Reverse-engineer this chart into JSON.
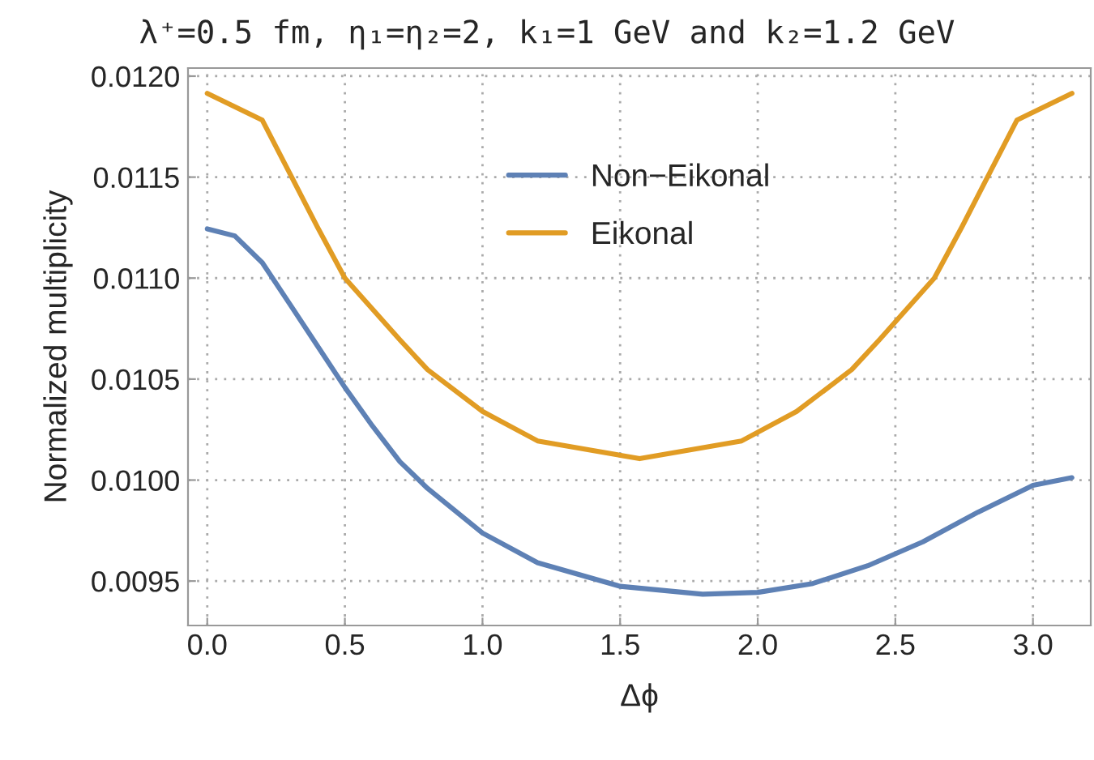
{
  "chart_data": {
    "type": "line",
    "title": "λ⁺=0.5 fm, η₁=η₂=2, k₁=1 GeV and k₂=1.2 GeV",
    "xlabel": "Δϕ",
    "ylabel": "Normalized multiplicity",
    "series": [
      {
        "name": "Non−Eikonal",
        "color": "#5e81b5",
        "x": [
          0,
          0.1,
          0.2,
          0.3,
          0.4,
          0.5,
          0.6,
          0.7,
          0.8,
          1.0,
          1.2,
          1.5,
          1.8,
          2.0,
          2.2,
          2.4,
          2.6,
          2.8,
          3.0,
          3.1416
        ],
        "values": [
          0.011244,
          0.011209,
          0.011076,
          0.010871,
          0.010665,
          0.010459,
          0.010268,
          0.010091,
          0.009959,
          0.009738,
          0.009591,
          0.009474,
          0.009435,
          0.009444,
          0.009488,
          0.009576,
          0.009694,
          0.009841,
          0.009974,
          0.010012
        ]
      },
      {
        "name": "Eikonal",
        "color": "#e19c24",
        "x": [
          0,
          0.2,
          0.3,
          0.4,
          0.5,
          0.7,
          0.8,
          1.0,
          1.2,
          1.5708,
          1.9416,
          2.1416,
          2.3416,
          2.4416,
          2.6416,
          2.7416,
          2.8416,
          2.9416,
          3.1416
        ],
        "values": [
          0.011915,
          0.011782,
          0.011518,
          0.011253,
          0.011,
          0.010694,
          0.010547,
          0.01034,
          0.010194,
          0.010106,
          0.010194,
          0.01034,
          0.010547,
          0.010694,
          0.011,
          0.011253,
          0.011518,
          0.011782,
          0.011915
        ]
      }
    ],
    "xlim": [
      -0.07,
      3.21
    ],
    "xticks": [
      {
        "value": 0,
        "label": "0.0"
      },
      0.5,
      {
        "value": 1,
        "label": "1.0"
      },
      1.5,
      {
        "value": 2,
        "label": "2.0"
      },
      2.5,
      {
        "value": 3,
        "label": "3.0"
      }
    ],
    "ylim": [
      0.00928,
      0.01204
    ],
    "yticks": [
      0.0095,
      {
        "value": 0.01,
        "label": "0.0100"
      },
      0.0105,
      {
        "value": 0.011,
        "label": "0.0110"
      },
      0.0115,
      {
        "value": 0.012,
        "label": "0.0120"
      }
    ],
    "grid": true,
    "legend": "top",
    "line_style": "solid",
    "marker": "none"
  }
}
